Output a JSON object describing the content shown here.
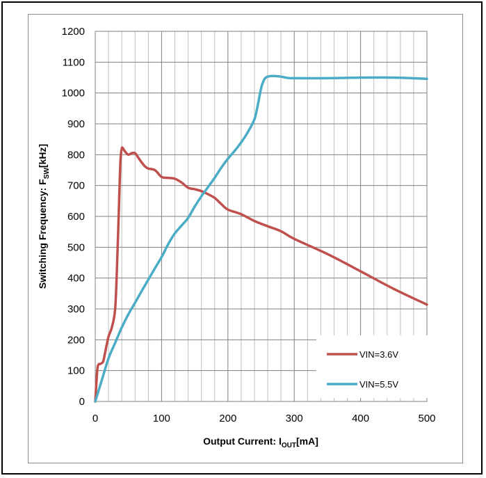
{
  "chart_data": {
    "type": "line",
    "xlabel": {
      "main": "Output Current: I",
      "sub": "OUT",
      "tail": "[mA]"
    },
    "ylabel": {
      "main": "Switching Frequency: F",
      "sub": "SW",
      "tail": "[kHz]"
    },
    "xlim": [
      0,
      500
    ],
    "ylim": [
      0,
      1200
    ],
    "x_major_ticks": [
      0,
      100,
      200,
      300,
      400,
      500
    ],
    "x_minor_step": 20,
    "y_ticks": [
      0,
      100,
      200,
      300,
      400,
      500,
      600,
      700,
      800,
      900,
      1000,
      1100,
      1200
    ],
    "grid": true,
    "legend_position": "bottom-right",
    "series": [
      {
        "name": "VIN=3.6V",
        "color": "#c0504d",
        "x": [
          0,
          3,
          5,
          8,
          12,
          15,
          20,
          25,
          30,
          33,
          36,
          38,
          40,
          42,
          45,
          50,
          55,
          60,
          65,
          70,
          75,
          80,
          90,
          100,
          110,
          120,
          130,
          140,
          150,
          160,
          170,
          180,
          190,
          200,
          220,
          240,
          260,
          280,
          300,
          350,
          400,
          450,
          500
        ],
        "y": [
          0,
          100,
          120,
          122,
          130,
          160,
          210,
          240,
          300,
          450,
          650,
          780,
          820,
          820,
          810,
          800,
          805,
          805,
          790,
          775,
          762,
          755,
          750,
          728,
          725,
          722,
          710,
          693,
          688,
          682,
          672,
          660,
          640,
          622,
          607,
          585,
          568,
          552,
          527,
          478,
          422,
          365,
          314
        ]
      },
      {
        "name": "VIN=5.5V",
        "color": "#4bacc6",
        "x": [
          0,
          10,
          20,
          30,
          40,
          50,
          60,
          70,
          80,
          90,
          100,
          110,
          120,
          130,
          140,
          150,
          160,
          170,
          180,
          190,
          200,
          210,
          220,
          230,
          240,
          245,
          250,
          255,
          260,
          265,
          270,
          280,
          290,
          300,
          350,
          400,
          450,
          500
        ],
        "y": [
          0,
          70,
          140,
          190,
          240,
          283,
          320,
          358,
          395,
          432,
          468,
          510,
          545,
          570,
          595,
          632,
          665,
          695,
          725,
          758,
          787,
          812,
          840,
          873,
          915,
          960,
          1015,
          1045,
          1053,
          1055,
          1055,
          1053,
          1049,
          1048,
          1048,
          1050,
          1050,
          1046
        ]
      }
    ]
  }
}
